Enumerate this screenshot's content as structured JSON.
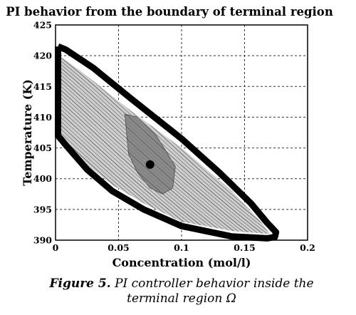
{
  "chart_data": {
    "type": "line",
    "title": "PI behavior from the boundary of terminal region",
    "xlabel": "Concentration (mol/l)",
    "ylabel": "Temperature (K)",
    "xlim": [
      0,
      0.2
    ],
    "ylim": [
      390,
      425
    ],
    "x_ticks": [
      0,
      0.05,
      0.1,
      0.15,
      0.2
    ],
    "x_tick_labels": [
      "0",
      "0.05",
      "0.1",
      "0.15",
      "0.2"
    ],
    "y_ticks": [
      390,
      395,
      400,
      405,
      410,
      415,
      420,
      425
    ],
    "y_tick_labels": [
      "390",
      "395",
      "400",
      "405",
      "410",
      "415",
      "420",
      "425"
    ],
    "grid": true,
    "series": [
      {
        "role": "terminal region boundary",
        "color": "#000000",
        "x": [
          0.002,
          0.008,
          0.03,
          0.06,
          0.1,
          0.13,
          0.155,
          0.168,
          0.175,
          0.174,
          0.168,
          0.14,
          0.1,
          0.07,
          0.045,
          0.025,
          0.008,
          0.002,
          0.002
        ],
        "y": [
          421.5,
          421.0,
          418.0,
          413.0,
          406.5,
          401.0,
          396.0,
          392.8,
          391.3,
          390.5,
          390.3,
          390.6,
          392.3,
          395.0,
          398.0,
          401.5,
          405.5,
          407.0,
          421.5
        ]
      },
      {
        "role": "trajectory region",
        "color": "#cfcfcf",
        "x": [
          0.003,
          0.02,
          0.06,
          0.1,
          0.14,
          0.165,
          0.17,
          0.14,
          0.1,
          0.07,
          0.045,
          0.02,
          0.003
        ],
        "y": [
          420.0,
          417.5,
          411.0,
          405.0,
          398.0,
          392.5,
          391.0,
          391.5,
          393.0,
          396.0,
          399.0,
          403.0,
          407.5
        ]
      },
      {
        "role": "inner gray region",
        "color": "#8a8a8a",
        "x": [
          0.055,
          0.065,
          0.08,
          0.095,
          0.093,
          0.085,
          0.075,
          0.065,
          0.058,
          0.055
        ],
        "y": [
          410.5,
          410.0,
          407.0,
          402.0,
          398.5,
          397.5,
          398.5,
          401.0,
          404.0,
          410.5
        ]
      }
    ],
    "points": [
      {
        "role": "equilibrium point",
        "x": 0.075,
        "y": 402.3,
        "color": "#000000"
      }
    ]
  },
  "caption": {
    "lead": "Figure 5.",
    "text": "PI controller behavior inside the terminal region Ω"
  }
}
